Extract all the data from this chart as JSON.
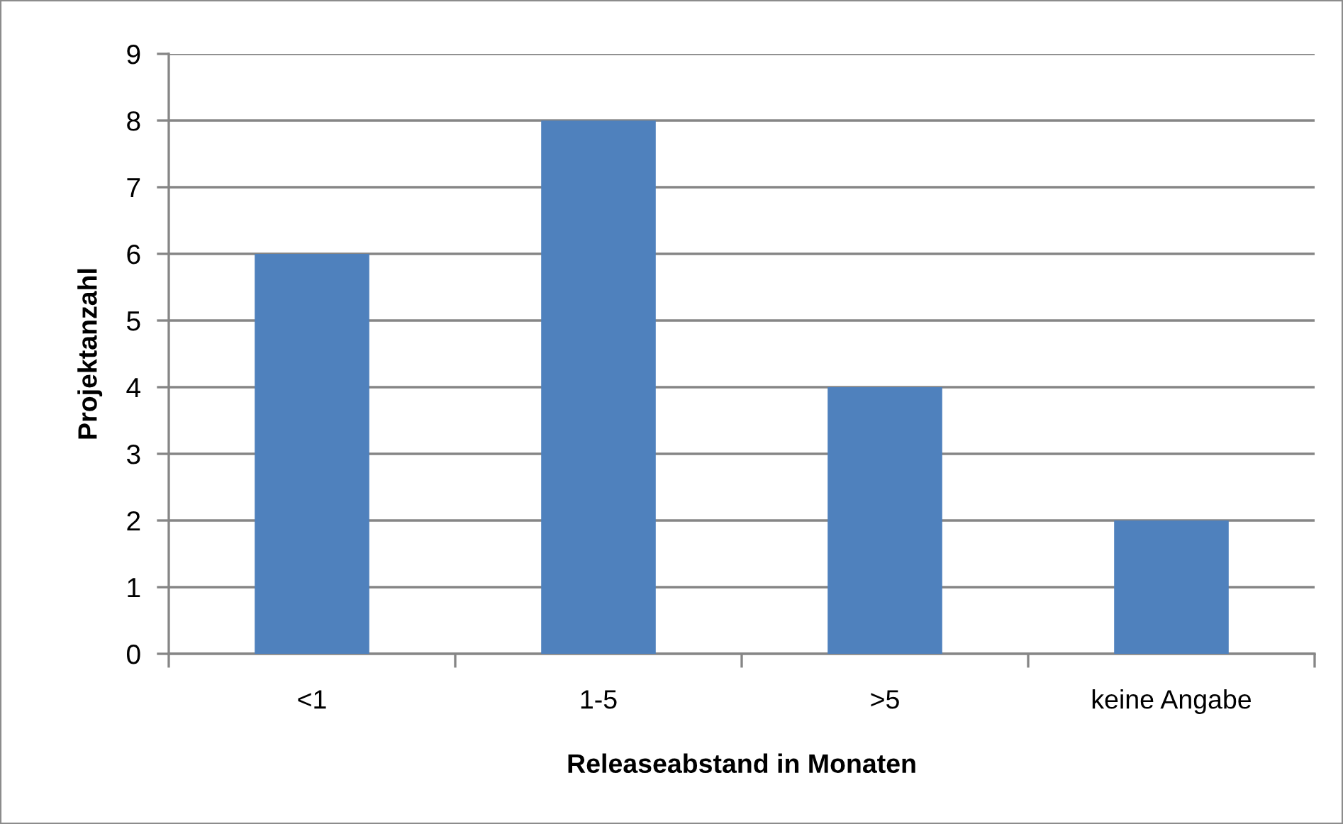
{
  "chart_data": {
    "type": "bar",
    "xlabel": "Releaseabstand in Monaten",
    "ylabel": "Projektanzahl",
    "categories": [
      "<1",
      "1-5",
      ">5",
      "keine Angabe"
    ],
    "values": [
      6,
      8,
      4,
      2
    ],
    "color": "#4f81bd",
    "ylim": [
      0,
      9
    ],
    "yticks": [
      0,
      1,
      2,
      3,
      4,
      5,
      6,
      7,
      8,
      9
    ],
    "grid": "y",
    "legend": false
  }
}
